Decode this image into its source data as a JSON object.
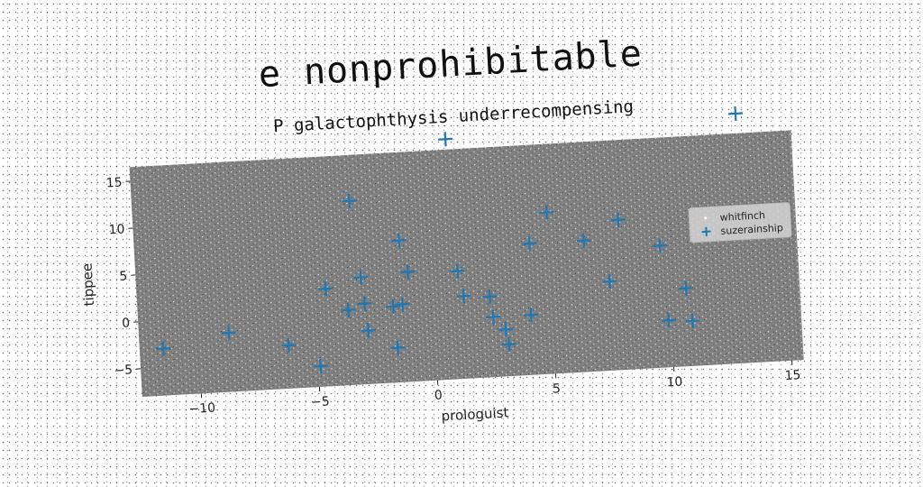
{
  "page": {
    "super_title": "e nonprohibitable"
  },
  "chart_data": {
    "type": "scatter",
    "title": "P galactophthysis underrecompensing",
    "xlabel": "prologuist",
    "ylabel": "tippee",
    "xlim": [
      -12.5,
      15.5
    ],
    "ylim": [
      -8,
      16.5
    ],
    "xticks": [
      -10,
      -5,
      0,
      5,
      10,
      15
    ],
    "yticks": [
      -5,
      0,
      5,
      10,
      15
    ],
    "grid": false,
    "legend_position": "right",
    "plot_background": "#808080",
    "series": [
      {
        "name": "whitfinch",
        "marker": "dot",
        "color": "#ffffff",
        "note_density": "dense uniform noise over plot area"
      },
      {
        "name": "suzerainship",
        "marker": "plus",
        "color": "#1f77b4",
        "points": [
          [
            -11.5,
            -3.0
          ],
          [
            -8.7,
            -1.7
          ],
          [
            -6.2,
            -3.4
          ],
          [
            -4.9,
            -5.8
          ],
          [
            -4.5,
            2.4
          ],
          [
            -3.6,
            0.0
          ],
          [
            -3.3,
            11.6
          ],
          [
            -3.0,
            3.4
          ],
          [
            -2.9,
            0.6
          ],
          [
            -2.8,
            -2.3
          ],
          [
            -1.7,
            0.1
          ],
          [
            -1.6,
            -4.3
          ],
          [
            -1.3,
            0.3
          ],
          [
            -1.3,
            7.1
          ],
          [
            -1.0,
            3.7
          ],
          [
            0.9,
            17.6
          ],
          [
            1.1,
            3.5
          ],
          [
            1.3,
            0.8
          ],
          [
            2.4,
            0.6
          ],
          [
            2.5,
            -1.6
          ],
          [
            3.0,
            -3.0
          ],
          [
            3.1,
            -4.6
          ],
          [
            4.1,
            -1.6
          ],
          [
            4.2,
            6.0
          ],
          [
            5.0,
            9.2
          ],
          [
            6.5,
            6.0
          ],
          [
            7.5,
            1.5
          ],
          [
            8.0,
            8.0
          ],
          [
            9.7,
            5.0
          ],
          [
            9.9,
            -3.0
          ],
          [
            10.7,
            0.3
          ],
          [
            10.9,
            -3.2
          ],
          [
            13.2,
            18.6
          ]
        ]
      }
    ]
  }
}
